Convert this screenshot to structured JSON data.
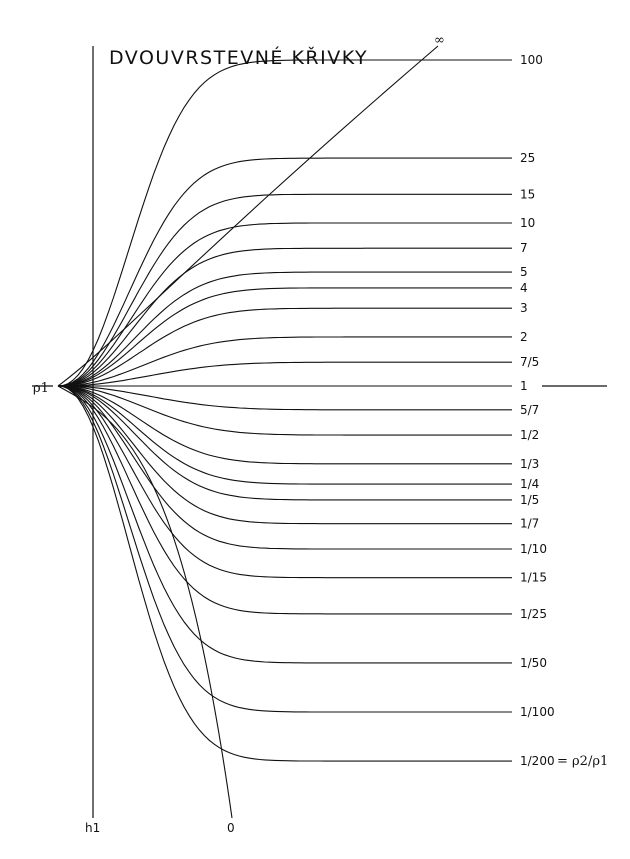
{
  "chart_data": {
    "type": "line",
    "title": "DVOUVRSTEVNÉ KŘIVKY",
    "origin_label": "ρ1",
    "vertical_axis_label": "h1",
    "ratio_label": "= ρ2/ρ1",
    "series": [
      {
        "name": "∞",
        "end": "inf"
      },
      {
        "name": "100",
        "end": 100
      },
      {
        "name": "25",
        "end": 25
      },
      {
        "name": "15",
        "end": 15
      },
      {
        "name": "10",
        "end": 10
      },
      {
        "name": "7",
        "end": 7
      },
      {
        "name": "5",
        "end": 5
      },
      {
        "name": "4",
        "end": 4
      },
      {
        "name": "3",
        "end": 3
      },
      {
        "name": "2",
        "end": 2
      },
      {
        "name": "7/5",
        "end": 1.4
      },
      {
        "name": "1",
        "end": 1
      },
      {
        "name": "5/7",
        "end": 0.714
      },
      {
        "name": "1/2",
        "end": 0.5
      },
      {
        "name": "1/3",
        "end": 0.333
      },
      {
        "name": "1/4",
        "end": 0.25
      },
      {
        "name": "1/5",
        "end": 0.2
      },
      {
        "name": "1/7",
        "end": 0.143
      },
      {
        "name": "1/10",
        "end": 0.1
      },
      {
        "name": "1/15",
        "end": 0.0667
      },
      {
        "name": "1/25",
        "end": 0.04
      },
      {
        "name": "1/50",
        "end": 0.02
      },
      {
        "name": "1/100",
        "end": 0.01
      },
      {
        "name": "1/200",
        "end": 0.005
      },
      {
        "name": "0",
        "end": 0
      }
    ],
    "grid": false,
    "legend": "right"
  }
}
